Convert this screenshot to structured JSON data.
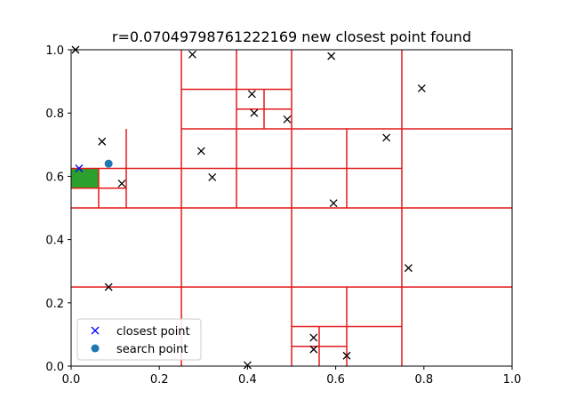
{
  "chart_data": {
    "type": "scatter",
    "title": "r=0.07049798761222169 new closest point found",
    "xlabel": "",
    "ylabel": "",
    "xlim": [
      0.0,
      1.0
    ],
    "ylim": [
      0.0,
      1.0
    ],
    "x_ticks": [
      0.0,
      0.2,
      0.4,
      0.6,
      0.8,
      1.0
    ],
    "y_ticks": [
      0.0,
      0.2,
      0.4,
      0.6,
      0.8,
      1.0
    ],
    "x_tick_labels": [
      "0.0",
      "0.2",
      "0.4",
      "0.6",
      "0.8",
      "1.0"
    ],
    "y_tick_labels": [
      "0.0",
      "0.2",
      "0.4",
      "0.6",
      "0.8",
      "1.0"
    ],
    "grid": false,
    "legend": {
      "placement": "lower-left",
      "entries": [
        {
          "label": "closest point",
          "marker": "x",
          "color": "#0000ff"
        },
        {
          "label": "search point",
          "marker": "o",
          "color": "#1f77b4"
        }
      ]
    },
    "colors": {
      "partition_lines": "#e41a1c",
      "data_points": "#000000",
      "closest_point": "#0000ff",
      "search_point": "#1f77b4",
      "highlight_cell": "#2ca02c"
    },
    "highlight_cell": {
      "x": [
        0.0,
        0.0625
      ],
      "y": [
        0.5625,
        0.625
      ]
    },
    "partition_segments": [
      [
        [
          0.0,
          0.25
        ],
        [
          1.0,
          0.25
        ]
      ],
      [
        [
          0.0,
          0.5
        ],
        [
          1.0,
          0.5
        ]
      ],
      [
        [
          0.25,
          0.75
        ],
        [
          1.0,
          0.75
        ]
      ],
      [
        [
          0.25,
          0.0
        ],
        [
          0.25,
          1.0
        ]
      ],
      [
        [
          0.5,
          0.0
        ],
        [
          0.5,
          1.0
        ]
      ],
      [
        [
          0.75,
          0.0
        ],
        [
          0.75,
          1.0
        ]
      ],
      [
        [
          0.125,
          0.5
        ],
        [
          0.125,
          0.75
        ]
      ],
      [
        [
          0.0,
          0.625
        ],
        [
          0.75,
          0.625
        ]
      ],
      [
        [
          0.0625,
          0.5
        ],
        [
          0.0625,
          0.625
        ]
      ],
      [
        [
          0.0,
          0.5625
        ],
        [
          0.125,
          0.5625
        ]
      ],
      [
        [
          0.375,
          0.5
        ],
        [
          0.375,
          1.0
        ]
      ],
      [
        [
          0.25,
          0.875
        ],
        [
          0.5,
          0.875
        ]
      ],
      [
        [
          0.375,
          0.8125
        ],
        [
          0.5,
          0.8125
        ]
      ],
      [
        [
          0.4375,
          0.75
        ],
        [
          0.4375,
          0.875
        ]
      ],
      [
        [
          0.625,
          0.5
        ],
        [
          0.625,
          0.75
        ]
      ],
      [
        [
          0.625,
          0.0
        ],
        [
          0.625,
          0.25
        ]
      ],
      [
        [
          0.5,
          0.125
        ],
        [
          0.75,
          0.125
        ]
      ],
      [
        [
          0.5,
          0.0625
        ],
        [
          0.625,
          0.0625
        ]
      ],
      [
        [
          0.5625,
          0.0
        ],
        [
          0.5625,
          0.125
        ]
      ]
    ],
    "data_points": [
      {
        "x": 0.01,
        "y": 1.0
      },
      {
        "x": 0.275,
        "y": 0.985
      },
      {
        "x": 0.59,
        "y": 0.98
      },
      {
        "x": 0.795,
        "y": 0.878
      },
      {
        "x": 0.41,
        "y": 0.86
      },
      {
        "x": 0.415,
        "y": 0.8
      },
      {
        "x": 0.49,
        "y": 0.78
      },
      {
        "x": 0.07,
        "y": 0.71
      },
      {
        "x": 0.715,
        "y": 0.722
      },
      {
        "x": 0.295,
        "y": 0.68
      },
      {
        "x": 0.32,
        "y": 0.597
      },
      {
        "x": 0.115,
        "y": 0.577
      },
      {
        "x": 0.595,
        "y": 0.515
      },
      {
        "x": 0.765,
        "y": 0.31
      },
      {
        "x": 0.085,
        "y": 0.25
      },
      {
        "x": 0.55,
        "y": 0.09
      },
      {
        "x": 0.55,
        "y": 0.053
      },
      {
        "x": 0.625,
        "y": 0.033
      },
      {
        "x": 0.4,
        "y": 0.003
      }
    ],
    "closest_point": {
      "x": 0.018,
      "y": 0.625
    },
    "search_point": {
      "x": 0.085,
      "y": 0.64
    }
  }
}
